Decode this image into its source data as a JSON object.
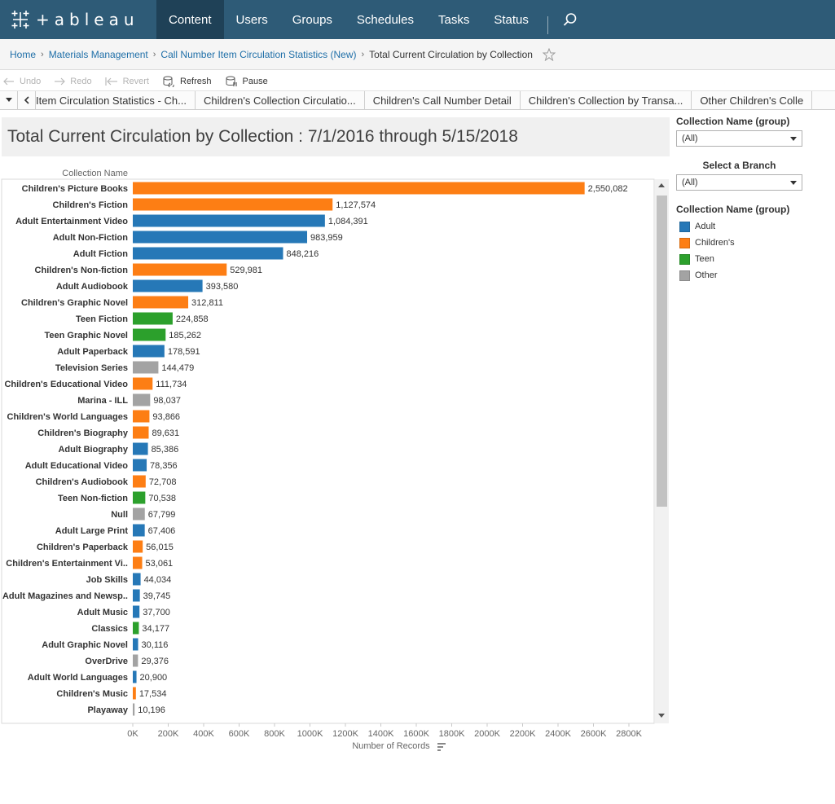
{
  "nav": {
    "logo_text": "+ableau",
    "items": [
      {
        "label": "Content",
        "active": true
      },
      {
        "label": "Users",
        "active": false
      },
      {
        "label": "Groups",
        "active": false
      },
      {
        "label": "Schedules",
        "active": false
      },
      {
        "label": "Tasks",
        "active": false
      },
      {
        "label": "Status",
        "active": false
      }
    ],
    "search_icon": "search-icon"
  },
  "breadcrumb": {
    "home": "Home",
    "project": "Materials Management",
    "workbook": "Call Number Item Circulation Statistics (New)",
    "current": "Total Current Circulation by Collection"
  },
  "toolbar": {
    "undo": "Undo",
    "redo": "Redo",
    "revert": "Revert",
    "refresh": "Refresh",
    "pause": "Pause"
  },
  "tabs": [
    "Item Circulation Statistics - Ch...",
    "Children's Collection Circulatio...",
    "Children's Call Number Detail",
    "Children's Collection by Transa...",
    "Other Children's Colle"
  ],
  "view": {
    "title": "Total Current Circulation by Collection : 7/1/2016 through 5/15/2018"
  },
  "filters": {
    "collection_group_label": "Collection Name (group)",
    "collection_group_value": "(All)",
    "branch_label": "Select a Branch",
    "branch_value": "(All)"
  },
  "legend": {
    "title": "Collection Name (group)",
    "items": [
      {
        "name": "Adult",
        "color": "#2678b7"
      },
      {
        "name": "Children's",
        "color": "#fd7e14"
      },
      {
        "name": "Teen",
        "color": "#2ca02c"
      },
      {
        "name": "Other",
        "color": "#a3a3a3"
      }
    ]
  },
  "chart_data": {
    "type": "bar",
    "orientation": "horizontal",
    "row_header": "Collection Name",
    "xlabel": "Number of Records",
    "xlim": [
      0,
      2900000
    ],
    "x_ticks": [
      "0K",
      "200K",
      "400K",
      "600K",
      "800K",
      "1000K",
      "1200K",
      "1400K",
      "1600K",
      "1800K",
      "2000K",
      "2200K",
      "2400K",
      "2600K",
      "2800K"
    ],
    "bars": [
      {
        "category": "Children's Picture Books",
        "value": 2550082,
        "label": "2,550,082",
        "group": "Children's"
      },
      {
        "category": "Children's Fiction",
        "value": 1127574,
        "label": "1,127,574",
        "group": "Children's"
      },
      {
        "category": "Adult Entertainment Video",
        "value": 1084391,
        "label": "1,084,391",
        "group": "Adult"
      },
      {
        "category": "Adult Non-Fiction",
        "value": 983959,
        "label": "983,959",
        "group": "Adult"
      },
      {
        "category": "Adult Fiction",
        "value": 848216,
        "label": "848,216",
        "group": "Adult"
      },
      {
        "category": "Children's Non-fiction",
        "value": 529981,
        "label": "529,981",
        "group": "Children's"
      },
      {
        "category": "Adult Audiobook",
        "value": 393580,
        "label": "393,580",
        "group": "Adult"
      },
      {
        "category": "Children's Graphic Novel",
        "value": 312811,
        "label": "312,811",
        "group": "Children's"
      },
      {
        "category": "Teen Fiction",
        "value": 224858,
        "label": "224,858",
        "group": "Teen"
      },
      {
        "category": "Teen Graphic Novel",
        "value": 185262,
        "label": "185,262",
        "group": "Teen"
      },
      {
        "category": "Adult Paperback",
        "value": 178591,
        "label": "178,591",
        "group": "Adult"
      },
      {
        "category": "Television Series",
        "value": 144479,
        "label": "144,479",
        "group": "Other"
      },
      {
        "category": "Children's Educational Video",
        "value": 111734,
        "label": "111,734",
        "group": "Children's"
      },
      {
        "category": "Marina - ILL",
        "value": 98037,
        "label": "98,037",
        "group": "Other"
      },
      {
        "category": "Children's World Languages",
        "value": 93866,
        "label": "93,866",
        "group": "Children's"
      },
      {
        "category": "Children's Biography",
        "value": 89631,
        "label": "89,631",
        "group": "Children's"
      },
      {
        "category": "Adult Biography",
        "value": 85386,
        "label": "85,386",
        "group": "Adult"
      },
      {
        "category": "Adult Educational Video",
        "value": 78356,
        "label": "78,356",
        "group": "Adult"
      },
      {
        "category": "Children's Audiobook",
        "value": 72708,
        "label": "72,708",
        "group": "Children's"
      },
      {
        "category": "Teen Non-fiction",
        "value": 70538,
        "label": "70,538",
        "group": "Teen"
      },
      {
        "category": "Null",
        "value": 67799,
        "label": "67,799",
        "group": "Other"
      },
      {
        "category": "Adult Large Print",
        "value": 67406,
        "label": "67,406",
        "group": "Adult"
      },
      {
        "category": "Children's Paperback",
        "value": 56015,
        "label": "56,015",
        "group": "Children's"
      },
      {
        "category": "Children's Entertainment Vi..",
        "value": 53061,
        "label": "53,061",
        "group": "Children's"
      },
      {
        "category": "Job Skills",
        "value": 44034,
        "label": "44,034",
        "group": "Adult"
      },
      {
        "category": "Adult Magazines and Newsp..",
        "value": 39745,
        "label": "39,745",
        "group": "Adult"
      },
      {
        "category": "Adult Music",
        "value": 37700,
        "label": "37,700",
        "group": "Adult"
      },
      {
        "category": "Classics",
        "value": 34177,
        "label": "34,177",
        "group": "Teen"
      },
      {
        "category": "Adult Graphic Novel",
        "value": 30116,
        "label": "30,116",
        "group": "Adult"
      },
      {
        "category": "OverDrive",
        "value": 29376,
        "label": "29,376",
        "group": "Other"
      },
      {
        "category": "Adult World Languages",
        "value": 20900,
        "label": "20,900",
        "group": "Adult"
      },
      {
        "category": "Children's Music",
        "value": 17534,
        "label": "17,534",
        "group": "Children's"
      },
      {
        "category": "Playaway",
        "value": 10196,
        "label": "10,196",
        "group": "Other"
      }
    ]
  }
}
